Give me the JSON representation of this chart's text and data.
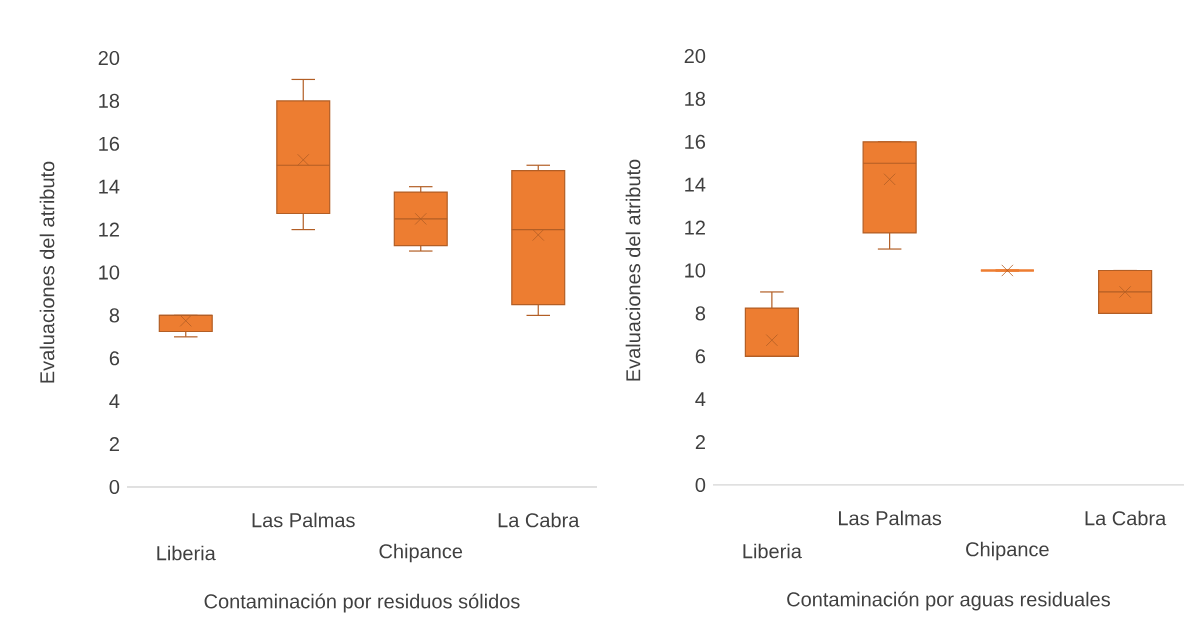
{
  "chart_data": [
    {
      "type": "box",
      "xlabel": "Contaminación por residuos sólidos",
      "ylabel": "Evaluaciones del atributo",
      "categories": [
        "Liberia",
        "Las Palmas",
        "Chipance",
        "La Cabra"
      ],
      "color": "#ed7d31",
      "ylim": [
        0,
        20
      ],
      "yticks": [
        0,
        2,
        4,
        6,
        8,
        10,
        12,
        14,
        16,
        18,
        20
      ],
      "grid": false,
      "boxes": [
        {
          "low": 7,
          "q1": 7.25,
          "median": 8,
          "q3": 8,
          "high": 8,
          "mean": 7.75
        },
        {
          "low": 12,
          "q1": 12.75,
          "median": 15,
          "q3": 18,
          "high": 19,
          "mean": 15.25
        },
        {
          "low": 11,
          "q1": 11.25,
          "median": 12.5,
          "q3": 13.75,
          "high": 14,
          "mean": 12.5
        },
        {
          "low": 8,
          "q1": 8.5,
          "median": 12,
          "q3": 14.75,
          "high": 15,
          "mean": 11.75
        }
      ]
    },
    {
      "type": "box",
      "xlabel": "Contaminación por aguas residuales",
      "ylabel": "Evaluaciones del atributo",
      "categories": [
        "Liberia",
        "Las Palmas",
        "Chipance",
        "La Cabra"
      ],
      "color": "#ed7d31",
      "ylim": [
        0,
        20
      ],
      "yticks": [
        0,
        2,
        4,
        6,
        8,
        10,
        12,
        14,
        16,
        18,
        20
      ],
      "grid": false,
      "boxes": [
        {
          "low": 6,
          "q1": 6,
          "median": 6,
          "q3": 8.25,
          "high": 9,
          "mean": 6.75
        },
        {
          "low": 11,
          "q1": 11.75,
          "median": 15,
          "q3": 16,
          "high": 16,
          "mean": 14.25
        },
        {
          "low": 10,
          "q1": 10,
          "median": 10,
          "q3": 10,
          "high": 10,
          "mean": 10
        },
        {
          "low": 8,
          "q1": 8,
          "median": 9,
          "q3": 10,
          "high": 10,
          "mean": 9
        }
      ]
    }
  ]
}
